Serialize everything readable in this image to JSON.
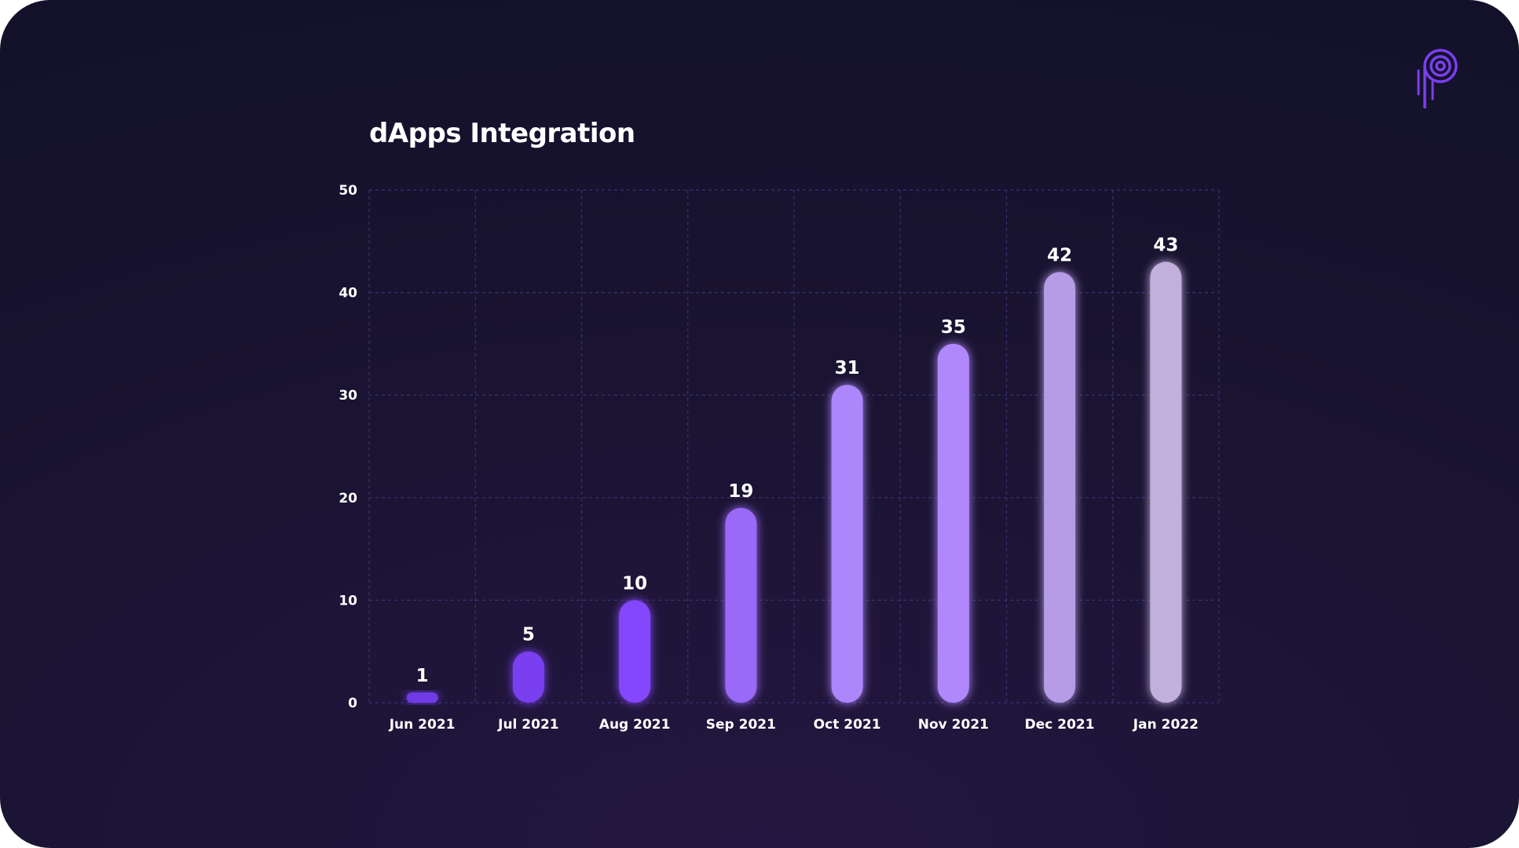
{
  "colors": {
    "background": "#1b1433",
    "grid": "#3b3170",
    "logo": "#7b3ff0",
    "bars": [
      "#6f3ae6",
      "#7a40ef",
      "#8546fb",
      "#9a69f8",
      "#ac86fb",
      "#b088fc",
      "#b69be6",
      "#c3afdd"
    ]
  },
  "logo": {
    "icon": "pyth-logo-icon"
  },
  "chart_data": {
    "type": "bar",
    "title": "dApps Integration",
    "xlabel": "",
    "ylabel": "",
    "categories": [
      "Jun 2021",
      "Jul 2021",
      "Aug 2021",
      "Sep 2021",
      "Oct 2021",
      "Nov 2021",
      "Dec 2021",
      "Jan 2022"
    ],
    "values": [
      1,
      5,
      10,
      19,
      31,
      35,
      42,
      43
    ],
    "data_labels": [
      "1",
      "5",
      "10",
      "19",
      "31",
      "35",
      "42",
      "43"
    ],
    "ylim": [
      0,
      50
    ],
    "yticks": [
      0,
      10,
      20,
      30,
      40,
      50
    ],
    "grid": true,
    "grid_style": "dashed",
    "legend": "none"
  }
}
